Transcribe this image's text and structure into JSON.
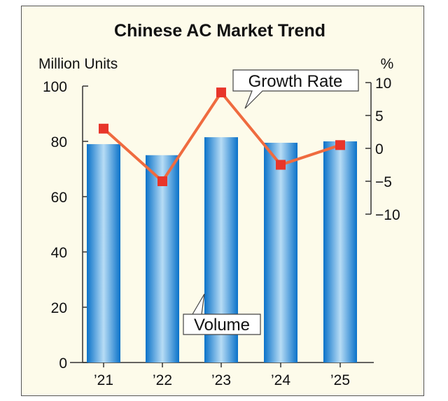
{
  "chart_data": {
    "type": "bar+line",
    "title": "Chinese AC Market Trend",
    "categories": [
      "’21",
      "’22",
      "’23",
      "’24",
      "’25"
    ],
    "series": [
      {
        "name": "Volume",
        "type": "bar",
        "axis": "left",
        "values": [
          79,
          75,
          81.5,
          79.5,
          80
        ],
        "color": "#1f8ad6"
      },
      {
        "name": "Growth Rate",
        "type": "line",
        "axis": "right",
        "values": [
          3,
          -5,
          8.5,
          -2.5,
          0.5
        ],
        "color": "#ef6b3f",
        "marker_color": "#e8352a"
      }
    ],
    "ylabel": "Million Units",
    "ylim": [
      0,
      100
    ],
    "yticks": [
      0,
      20,
      40,
      60,
      80,
      100
    ],
    "y2label": "%",
    "y2lim": [
      -10,
      10
    ],
    "y2ticks": [
      10,
      5,
      0,
      -5,
      -10
    ],
    "y2tick_labels": [
      "10",
      "5",
      "0",
      "−5",
      "−10"
    ],
    "annotations": [
      "Growth Rate",
      "Volume"
    ],
    "grid": false,
    "background": "#fdfbea"
  }
}
